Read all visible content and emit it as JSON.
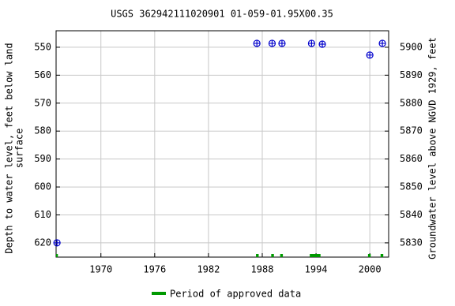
{
  "chart_data": {
    "type": "scatter",
    "title": "USGS 362942111020901 01-059-01.95X00.35",
    "ylabel": [
      "Depth to water level, feet below land",
      "surface"
    ],
    "y2label": "Groundwater level above NGVD 1929, feet",
    "x": [
      1965.1,
      1987.4,
      1989.1,
      1990.2,
      1993.5,
      1994.7,
      2000.0,
      2001.4
    ],
    "series": [
      {
        "name": "Depth to water level",
        "color": "#0000cc",
        "values": [
          620.0,
          548.6,
          548.6,
          548.6,
          548.6,
          548.9,
          552.8,
          548.6
        ]
      }
    ],
    "xlim": [
      1965.0,
      2002.1
    ],
    "xticks": [
      1970,
      1976,
      1982,
      1988,
      1994,
      2000
    ],
    "ylim": [
      625.1,
      544.1
    ],
    "yticks": [
      550,
      560,
      570,
      580,
      590,
      600,
      610,
      620
    ],
    "y2lim": [
      5824.9,
      5905.9
    ],
    "y2ticks": [
      5830,
      5840,
      5850,
      5860,
      5870,
      5880,
      5890,
      5900
    ],
    "grid": true,
    "approved_periods": [
      [
        1965.0,
        1965.2
      ],
      [
        1987.3,
        1987.6
      ],
      [
        1989.0,
        1989.3
      ],
      [
        1990.0,
        1990.3
      ],
      [
        1993.3,
        1994.5
      ],
      [
        1999.8,
        2000.1
      ],
      [
        2001.2,
        2001.5
      ]
    ],
    "approved_color": "#009900",
    "legend": "Period of approved data"
  }
}
